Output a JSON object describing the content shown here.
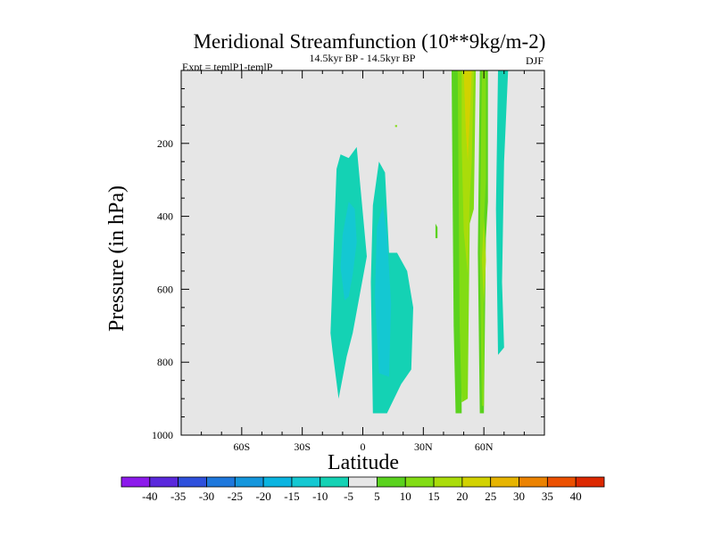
{
  "chart_data": {
    "type": "contour",
    "title": "Meridional Streamfunction (10**9kg/m-2)",
    "left_label": "Expt = temlP1-temlP",
    "center_label": "14.5kyr BP - 14.5kyr BP",
    "right_label": "DJF",
    "xlabel": "Latitude",
    "ylabel": "Pressure (in hPa)",
    "xlim": [
      -90,
      90
    ],
    "ylim": [
      1000,
      0
    ],
    "x_ticks": [
      {
        "value": -60,
        "label": "60S"
      },
      {
        "value": -30,
        "label": "30S"
      },
      {
        "value": 0,
        "label": "0"
      },
      {
        "value": 30,
        "label": "30N"
      },
      {
        "value": 60,
        "label": "60N"
      }
    ],
    "y_ticks": [
      {
        "value": 200,
        "label": "200"
      },
      {
        "value": 400,
        "label": "400"
      },
      {
        "value": 600,
        "label": "600"
      },
      {
        "value": 800,
        "label": "800"
      },
      {
        "value": 1000,
        "label": "1000"
      }
    ],
    "background_color": "#e6e6e6",
    "colorbar": {
      "levels": [
        -40,
        -35,
        -30,
        -25,
        -20,
        -15,
        -10,
        -5,
        5,
        10,
        15,
        20,
        25,
        30,
        35,
        40
      ],
      "colors": [
        "#8c1aeb",
        "#5a28dc",
        "#2e50dc",
        "#1e78dc",
        "#1496dc",
        "#0ab4e0",
        "#14c8d2",
        "#14d2b4",
        "#e6e6e6",
        "#5ad21e",
        "#82dc14",
        "#aadc0a",
        "#d2d200",
        "#e6b400",
        "#eb8200",
        "#eb5000",
        "#dc2800"
      ]
    },
    "regions": [
      {
        "name": "negative-cell-southern-outer",
        "level": -10,
        "points": [
          [
            -16,
            720
          ],
          [
            -13,
            270
          ],
          [
            -11,
            230
          ],
          [
            -7,
            240
          ],
          [
            -3,
            210
          ],
          [
            2,
            510
          ],
          [
            -5,
            720
          ],
          [
            -8,
            785
          ],
          [
            -12,
            900
          ],
          [
            -15,
            770
          ]
        ]
      },
      {
        "name": "negative-cell-southern-inner",
        "level": -15,
        "points": [
          [
            -9,
            630
          ],
          [
            -11,
            540
          ],
          [
            -10,
            450
          ],
          [
            -7,
            360
          ],
          [
            -4,
            380
          ],
          [
            -3,
            470
          ],
          [
            -5,
            560
          ],
          [
            -7,
            620
          ]
        ]
      },
      {
        "name": "negative-cell-northern-outer",
        "level": -10,
        "points": [
          [
            5,
            940
          ],
          [
            4,
            580
          ],
          [
            5,
            370
          ],
          [
            8,
            250
          ],
          [
            11,
            280
          ],
          [
            13,
            500
          ],
          [
            17,
            500
          ],
          [
            22,
            550
          ],
          [
            25,
            650
          ],
          [
            24,
            820
          ],
          [
            19,
            860
          ],
          [
            12,
            940
          ]
        ]
      },
      {
        "name": "negative-cell-northern-inner",
        "level": -15,
        "points": [
          [
            8,
            830
          ],
          [
            6,
            620
          ],
          [
            7,
            430
          ],
          [
            10,
            370
          ],
          [
            12,
            450
          ],
          [
            14,
            640
          ],
          [
            13,
            840
          ]
        ]
      },
      {
        "name": "positive-column-outer",
        "level": 5,
        "points": [
          [
            44,
            0
          ],
          [
            48,
            0
          ],
          [
            49,
            940
          ],
          [
            46,
            940
          ],
          [
            45,
            700
          ]
        ]
      },
      {
        "name": "positive-column-core",
        "level": 10,
        "points": [
          [
            47,
            0
          ],
          [
            56,
            0
          ],
          [
            55,
            380
          ],
          [
            53,
            420
          ],
          [
            52,
            900
          ],
          [
            49,
            910
          ],
          [
            48,
            700
          ]
        ]
      },
      {
        "name": "positive-column-inner",
        "level": 15,
        "points": [
          [
            49,
            0
          ],
          [
            55,
            0
          ],
          [
            54,
            250
          ],
          [
            53,
            350
          ],
          [
            52,
            560
          ],
          [
            50,
            440
          ],
          [
            49,
            200
          ]
        ]
      },
      {
        "name": "positive-column-peak",
        "level": 20,
        "points": [
          [
            50,
            0
          ],
          [
            54,
            0
          ],
          [
            53,
            130
          ],
          [
            52,
            250
          ],
          [
            51,
            160
          ]
        ]
      },
      {
        "name": "positive-column-east-outer",
        "level": 5,
        "points": [
          [
            58,
            0
          ],
          [
            62,
            0
          ],
          [
            62,
            360
          ],
          [
            61,
            460
          ],
          [
            60,
            940
          ],
          [
            58,
            940
          ],
          [
            57,
            500
          ]
        ]
      },
      {
        "name": "positive-column-east-inner",
        "level": 10,
        "points": [
          [
            59,
            0
          ],
          [
            61,
            0
          ],
          [
            61,
            300
          ],
          [
            60,
            420
          ],
          [
            60,
            920
          ],
          [
            59,
            920
          ],
          [
            58,
            500
          ]
        ]
      },
      {
        "name": "positive-column-east-edge",
        "level": 15,
        "points": [
          [
            60,
            400
          ],
          [
            61,
            520
          ],
          [
            60,
            640
          ],
          [
            59,
            520
          ]
        ]
      },
      {
        "name": "negative-column-east",
        "level": -10,
        "points": [
          [
            67,
            0
          ],
          [
            72,
            0
          ],
          [
            70,
            250
          ],
          [
            69,
            580
          ],
          [
            70,
            760
          ],
          [
            67,
            780
          ],
          [
            66,
            380
          ]
        ]
      },
      {
        "name": "small-positive-patch",
        "level": 5,
        "points": [
          [
            36,
            420
          ],
          [
            37,
            430
          ],
          [
            37,
            460
          ],
          [
            36,
            460
          ]
        ]
      },
      {
        "name": "tiny-positive-dot",
        "level": 10,
        "points": [
          [
            16,
            150
          ],
          [
            17,
            150
          ],
          [
            17,
            155
          ],
          [
            16,
            155
          ]
        ]
      }
    ]
  }
}
